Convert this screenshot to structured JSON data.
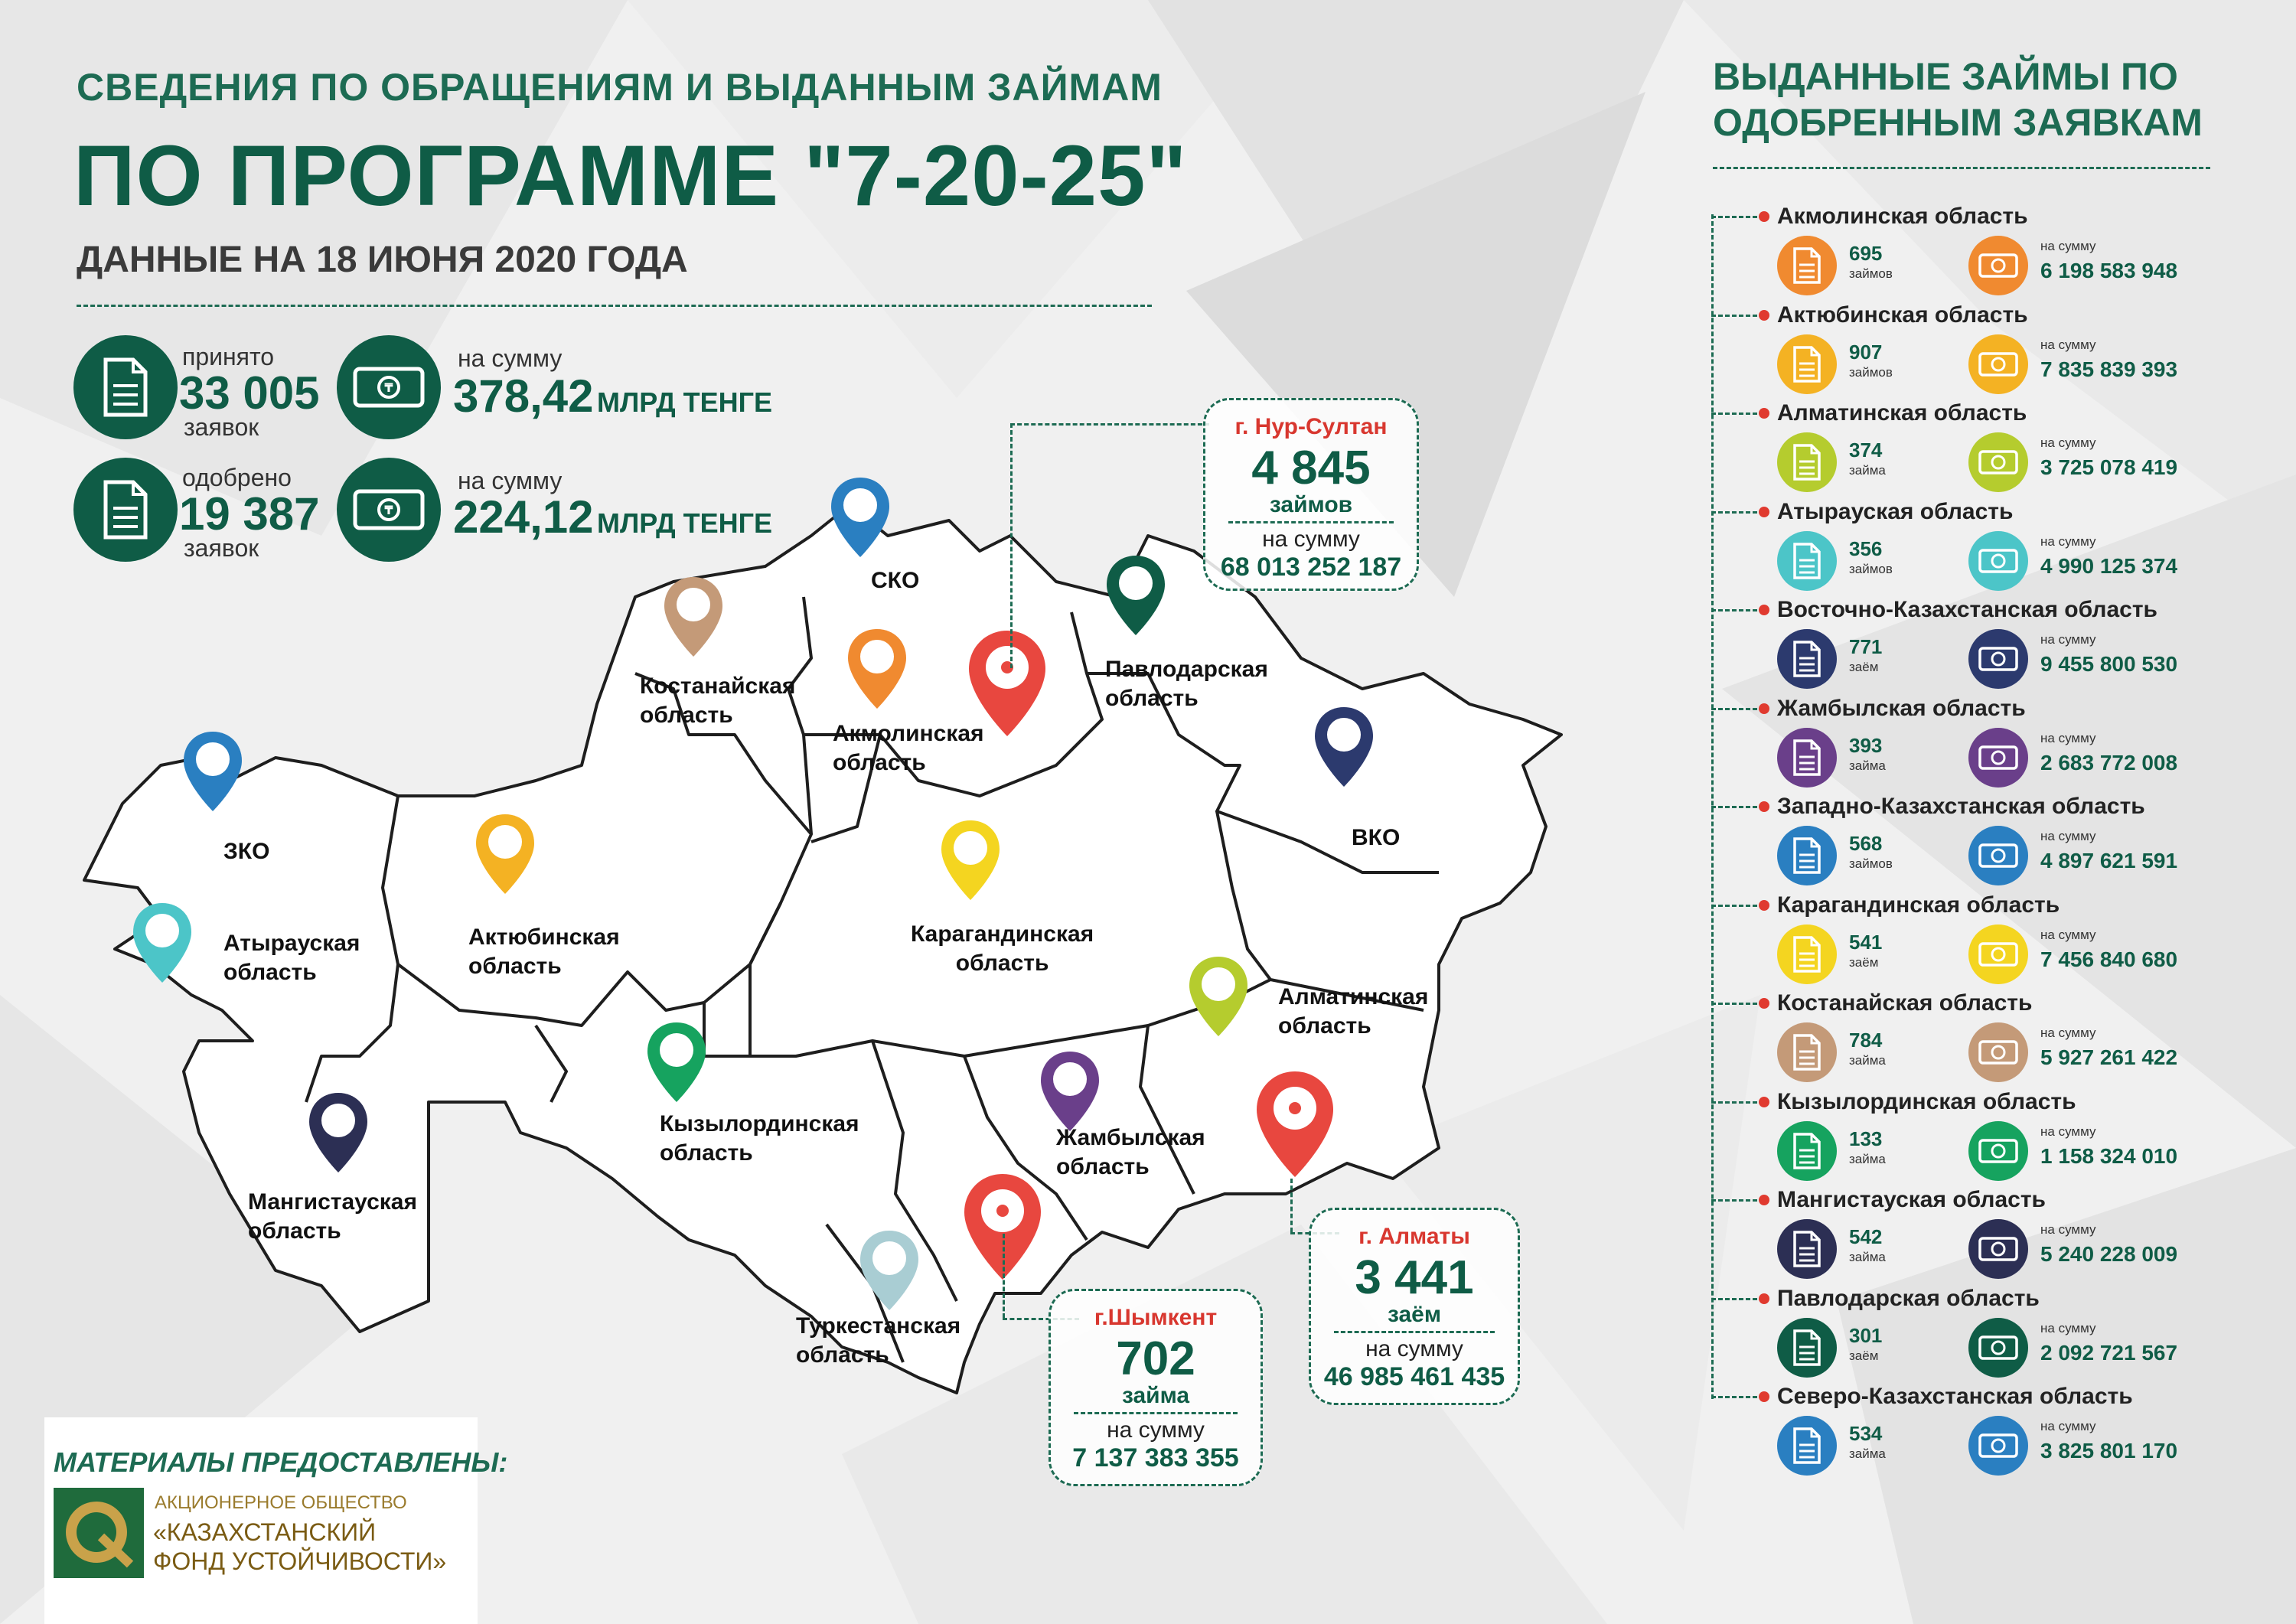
{
  "header": {
    "subtitle": "СВЕДЕНИЯ ПО ОБРАЩЕНИЯМ И ВЫДАННЫМ ЗАЙМАМ",
    "title": "ПО ПРОГРАММЕ \"7-20-25\"",
    "date": "ДАННЫЕ НА 18 ИЮНЯ 2020 ГОДА"
  },
  "stats": {
    "accepted": {
      "label": "принято",
      "value": "33 005",
      "unit": "заявок",
      "sum_label": "на сумму",
      "sum_value": "378,42",
      "sum_unit": "МЛРД ТЕНГЕ"
    },
    "approved": {
      "label": "одобрено",
      "value": "19 387",
      "unit": "заявок",
      "sum_label": "на сумму",
      "sum_value": "224,12",
      "sum_unit": "МЛРД ТЕНГЕ"
    }
  },
  "map": {
    "regions": [
      {
        "name": "СКО",
        "color": "#2a7fc1"
      },
      {
        "name": "Костанайская\nобласть",
        "color": "#c49a78"
      },
      {
        "name": "Акмолинская\nобласть",
        "color": "#f08a30"
      },
      {
        "name": "Павлодарская\nобласть",
        "color": "#0f5c46"
      },
      {
        "name": "ЗКО",
        "color": "#2a7fc1"
      },
      {
        "name": "ВКО",
        "color": "#2c3a6e"
      },
      {
        "name": "Атырауская\nобласть",
        "color": "#4cc5c8"
      },
      {
        "name": "Актюбинская\nобласть",
        "color": "#f4b223"
      },
      {
        "name": "Карагандинская\nобласть",
        "color": "#f4d520"
      },
      {
        "name": "Алматинская\nобласть",
        "color": "#b5cc2e"
      },
      {
        "name": "Кызылординская\nобласть",
        "color": "#16a35f"
      },
      {
        "name": "Жамбылская\nобласть",
        "color": "#6a3f8a"
      },
      {
        "name": "Мангистауская\nобласть",
        "color": "#2c2f54"
      },
      {
        "name": "Туркестанская\nобласть",
        "color": "#a9cdd3"
      }
    ],
    "city_pin_color": "#e8473f",
    "cities": {
      "nur_sultan": {
        "city": "г. Нур-Султан",
        "count": "4 845",
        "unit": "займов",
        "sum_label": "на сумму",
        "sum": "68 013 252 187"
      },
      "almaty": {
        "city": "г. Алматы",
        "count": "3 441",
        "unit": "заём",
        "sum_label": "на сумму",
        "sum": "46 985 461 435"
      },
      "shymkent": {
        "city": "г.Шымкент",
        "count": "702",
        "unit": "займа",
        "sum_label": "на сумму",
        "sum": "7 137 383 355"
      }
    }
  },
  "right_panel": {
    "title_line1": "ВЫДАННЫЕ ЗАЙМЫ ПО",
    "title_line2": "ОДОБРЕННЫМ ЗАЯВКАМ",
    "sum_label": "на сумму",
    "regions": [
      {
        "name": "Акмолинская область",
        "count": "695",
        "unit": "займов",
        "amount": "6 198 583 948",
        "color": "#f08a30"
      },
      {
        "name": "Актюбинская область",
        "count": "907",
        "unit": "займов",
        "amount": "7 835 839 393",
        "color": "#f4b223"
      },
      {
        "name": "Алматинская область",
        "count": "374",
        "unit": "займа",
        "amount": "3 725 078 419",
        "color": "#b5cc2e"
      },
      {
        "name": "Атырауская область",
        "count": "356",
        "unit": "займов",
        "amount": "4 990 125 374",
        "color": "#4cc5c8"
      },
      {
        "name": "Восточно-Казахстанская область",
        "count": "771",
        "unit": "заём",
        "amount": "9 455 800 530",
        "color": "#2c3a6e"
      },
      {
        "name": "Жамбылская область",
        "count": "393",
        "unit": "займа",
        "amount": "2 683 772 008",
        "color": "#6a3f8a"
      },
      {
        "name": "Западно-Казахстанская область",
        "count": "568",
        "unit": "займов",
        "amount": "4 897 621 591",
        "color": "#2a7fc1"
      },
      {
        "name": "Карагандинская область",
        "count": "541",
        "unit": "заём",
        "amount": "7 456 840 680",
        "color": "#f4d520"
      },
      {
        "name": "Костанайская область",
        "count": "784",
        "unit": "займа",
        "amount": "5 927 261 422",
        "color": "#c49a78"
      },
      {
        "name": "Кызылординская область",
        "count": "133",
        "unit": "займа",
        "amount": "1 158 324 010",
        "color": "#16a35f"
      },
      {
        "name": "Мангистауская область",
        "count": "542",
        "unit": "займа",
        "amount": "5 240 228 009",
        "color": "#2c2f54"
      },
      {
        "name": "Павлодарская область",
        "count": "301",
        "unit": "заём",
        "amount": "2 092 721 567",
        "color": "#0f5c46"
      },
      {
        "name": "Северо-Казахстанская область",
        "count": "534",
        "unit": "займа",
        "amount": "3 825 801 170",
        "color": "#2a7fc1"
      }
    ]
  },
  "footer": {
    "title": "МАТЕРИАЛЫ ПРЕДОСТАВЛЕНЫ:",
    "org_line1": "АКЦИОНЕРНОЕ ОБЩЕСТВО",
    "org_line2": "«КАЗАХСТАНСКИЙ",
    "org_line3": "ФОНД УСТОЙЧИВОСТИ»"
  }
}
